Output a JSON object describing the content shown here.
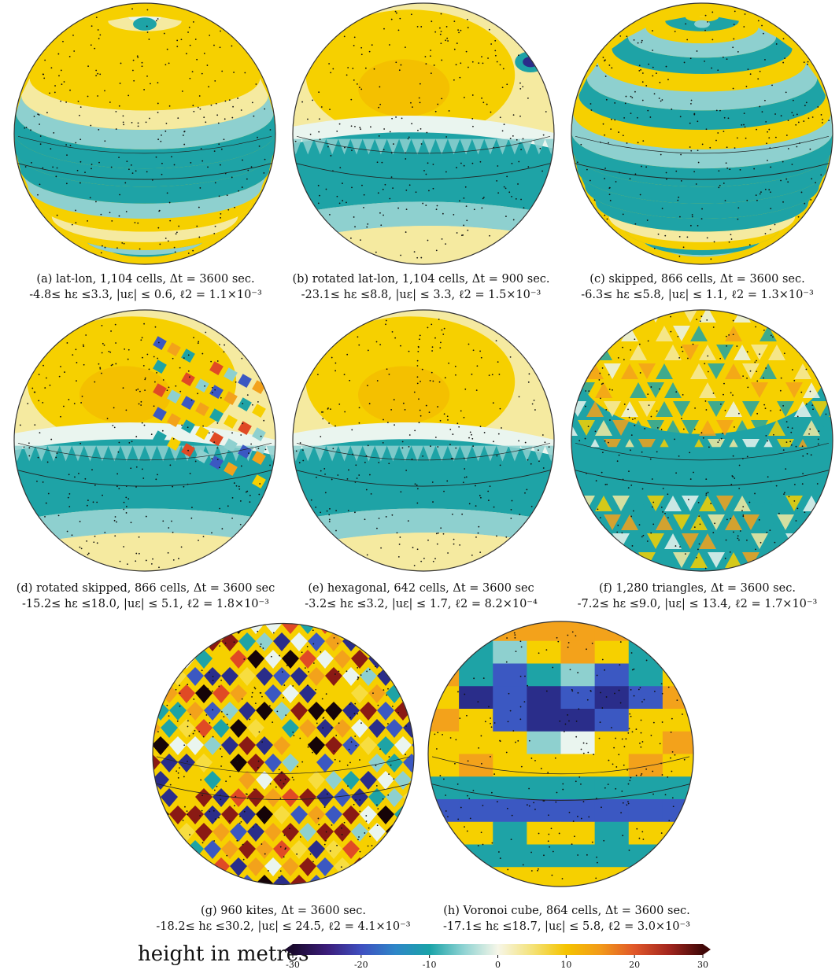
{
  "panels": [
    {
      "id": "a",
      "pattern": "latlon",
      "caption": "(a) lat-lon, 1,104 cells, Δt = 3600 sec.",
      "stats": "-4.8≤ hε ≤3.3, |uε| ≤ 0.6, ℓ2 = 1.1×10⁻³"
    },
    {
      "id": "b",
      "pattern": "rotated",
      "caption": "(b) rotated lat-lon, 1,104 cells, Δt = 900 sec.",
      "stats": "-23.1≤ hε ≤8.8, |uε| ≤ 3.3, ℓ2 = 1.5×10⁻³"
    },
    {
      "id": "c",
      "pattern": "skipped",
      "caption": "(c) skipped, 866 cells, Δt = 3600 sec.",
      "stats": "-6.3≤ hε ≤5.8, |uε| ≤ 1.1, ℓ2 = 1.3×10⁻³"
    },
    {
      "id": "d",
      "pattern": "rotskipped",
      "caption": "(d) rotated skipped, 866 cells, Δt = 3600 sec",
      "stats": "-15.2≤ hε ≤18.0, |uε| ≤ 5.1, ℓ2 = 1.8×10⁻³"
    },
    {
      "id": "e",
      "pattern": "hex",
      "caption": "(e) hexagonal, 642 cells, Δt = 3600 sec",
      "stats": "-3.2≤ hε ≤3.2, |uε| ≤ 1.7, ℓ2 = 8.2×10⁻⁴"
    },
    {
      "id": "f",
      "pattern": "tri",
      "caption": "(f) 1,280 triangles, Δt = 3600 sec.",
      "stats": "-7.2≤ hε ≤9.0, |uε| ≤ 13.4, ℓ2 = 1.7×10⁻³"
    },
    {
      "id": "g",
      "pattern": "kites",
      "caption": "(g) 960 kites, Δt = 3600 sec.",
      "stats": "-18.2≤ hε ≤30.2, |uε| ≤ 24.5, ℓ2 = 4.1×10⁻³"
    },
    {
      "id": "h",
      "pattern": "cube",
      "caption": "(h) Voronoi cube, 864 cells, Δt = 3600 sec.",
      "stats": "-17.1≤ hε ≤18.7, |uε| ≤ 5.8, ℓ2 = 3.0×10⁻³"
    }
  ],
  "colorbar": {
    "title": "height in metres",
    "ticks": [
      "-30",
      "-20",
      "-10",
      "0",
      "10",
      "20",
      "30"
    ],
    "range": [
      -30,
      30
    ],
    "colors": [
      "#1a0a2e",
      "#3b1d7a",
      "#3f4fc0",
      "#2e86c8",
      "#1aa3a8",
      "#8fd3d3",
      "#f6f6e8",
      "#f4e27a",
      "#f5c400",
      "#f29a1a",
      "#e0572a",
      "#a3261e",
      "#400808"
    ]
  },
  "colors": {
    "teal": "#1ea3a6",
    "lightteal": "#8ed0cf",
    "pale": "#eaf5ef",
    "cream": "#f5eaa0",
    "yellow": "#f6d000",
    "orange": "#f3a21b",
    "red": "#e04a25",
    "darkred": "#8a1a14",
    "blue": "#3b58c2",
    "navy": "#2a2d8a",
    "black": "#160408",
    "midyellow": "#f7dd40"
  }
}
